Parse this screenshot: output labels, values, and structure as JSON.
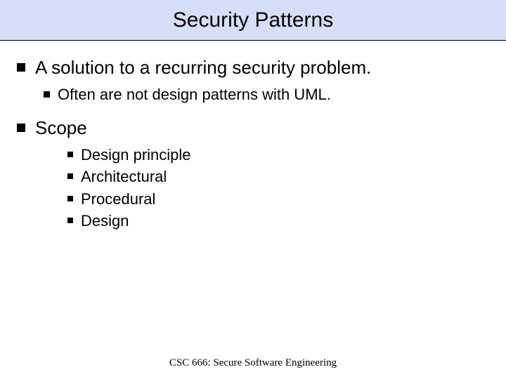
{
  "slide": {
    "title": "Security Patterns",
    "title_bg": "#d6dff7",
    "title_fontsize": 30,
    "body_fontsize_l1": 26,
    "body_fontsize_l2": 22,
    "body_fontsize_l3": 22,
    "bullet_color": "#000000",
    "background_color": "#ffffff",
    "items": [
      {
        "text": "A solution to a recurring security problem.",
        "children": [
          {
            "text": "Often are not design patterns with UML."
          }
        ]
      },
      {
        "text": "Scope",
        "children": [
          {
            "text": "Design principle"
          },
          {
            "text": "Architectural"
          },
          {
            "text": "Procedural"
          },
          {
            "text": "Design"
          }
        ]
      }
    ],
    "footer": "CSC 666: Secure Software Engineering"
  }
}
